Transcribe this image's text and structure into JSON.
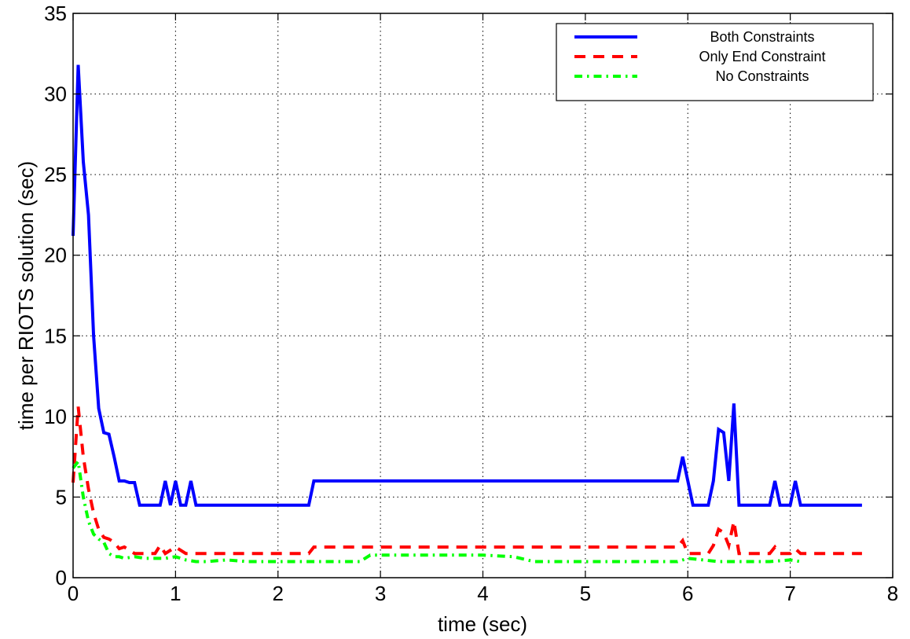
{
  "chart_data": {
    "type": "line",
    "title": "",
    "xlabel": "time (sec)",
    "ylabel": "time per RIOTS solution (sec)",
    "xlim": [
      0,
      8
    ],
    "ylim": [
      0,
      35
    ],
    "xticks": [
      "0",
      "1",
      "2",
      "3",
      "4",
      "5",
      "6",
      "7",
      "8"
    ],
    "yticks": [
      "0",
      "5",
      "10",
      "15",
      "20",
      "25",
      "30",
      "35"
    ],
    "grid": true,
    "legend_position": "top-right",
    "series": [
      {
        "name": "Both Constraints",
        "color": "#0000ff",
        "dash": "solid",
        "x": [
          0,
          0.05,
          0.1,
          0.15,
          0.2,
          0.25,
          0.3,
          0.35,
          0.4,
          0.45,
          0.5,
          0.55,
          0.6,
          0.65,
          0.7,
          0.75,
          0.8,
          0.85,
          0.9,
          0.95,
          1.0,
          1.05,
          1.1,
          1.15,
          1.2,
          1.4,
          1.6,
          1.8,
          2.0,
          2.2,
          2.3,
          2.35,
          2.4,
          3.0,
          3.2,
          3.4,
          4.0,
          4.8,
          5.0,
          5.5,
          5.9,
          5.95,
          6.0,
          6.05,
          6.1,
          6.2,
          6.25,
          6.3,
          6.35,
          6.4,
          6.45,
          6.5,
          6.6,
          6.7,
          6.8,
          6.85,
          6.9,
          7.0,
          7.05,
          7.1,
          7.2,
          7.5,
          7.7
        ],
        "values": [
          21.2,
          31.8,
          25.8,
          22.5,
          15,
          10.5,
          9,
          8.9,
          7.5,
          6,
          6,
          5.9,
          5.9,
          4.5,
          4.5,
          4.5,
          4.5,
          4.5,
          6,
          4.5,
          6,
          4.5,
          4.5,
          6,
          4.5,
          4.5,
          4.5,
          4.5,
          4.5,
          4.5,
          4.5,
          6,
          6,
          6,
          6,
          6,
          6,
          6,
          6,
          6,
          6,
          7.5,
          6,
          4.5,
          4.5,
          4.5,
          6,
          9.2,
          9,
          6,
          10.8,
          4.5,
          4.5,
          4.5,
          4.5,
          6,
          4.5,
          4.5,
          6,
          4.5,
          4.5,
          4.5,
          4.5
        ]
      },
      {
        "name": "Only End Constraint",
        "color": "#ff0000",
        "dash": "dashed",
        "x": [
          0,
          0.05,
          0.1,
          0.15,
          0.2,
          0.25,
          0.3,
          0.35,
          0.4,
          0.45,
          0.5,
          0.6,
          0.7,
          0.8,
          0.85,
          0.9,
          1.0,
          1.1,
          1.2,
          1.5,
          2.0,
          2.3,
          2.35,
          2.5,
          2.8,
          3.0,
          3.5,
          4.0,
          4.5,
          5.0,
          5.5,
          5.9,
          5.95,
          6.0,
          6.1,
          6.2,
          6.25,
          6.3,
          6.35,
          6.4,
          6.45,
          6.5,
          6.6,
          6.7,
          6.8,
          6.85,
          6.9,
          7.0,
          7.05,
          7.1,
          7.3,
          7.7
        ],
        "values": [
          5.9,
          10.6,
          7.5,
          5.5,
          4,
          3,
          2.5,
          2.4,
          2.2,
          1.8,
          1.9,
          1.5,
          1.5,
          1.5,
          2,
          1.5,
          1.9,
          1.5,
          1.5,
          1.5,
          1.5,
          1.5,
          1.9,
          1.9,
          1.9,
          1.9,
          1.9,
          1.9,
          1.9,
          1.9,
          1.9,
          1.9,
          2.3,
          1.5,
          1.5,
          1.5,
          2,
          3,
          2.8,
          2,
          3.5,
          1.5,
          1.5,
          1.5,
          1.5,
          1.9,
          1.5,
          1.5,
          1.8,
          1.5,
          1.5,
          1.5
        ]
      },
      {
        "name": "No Constraints",
        "color": "#00ff00",
        "dash": "dashdot",
        "x": [
          0,
          0.05,
          0.1,
          0.15,
          0.2,
          0.25,
          0.3,
          0.35,
          0.4,
          0.45,
          0.5,
          0.6,
          0.7,
          0.8,
          0.9,
          1.0,
          1.1,
          1.2,
          1.3,
          1.5,
          1.7,
          2.0,
          2.3,
          2.5,
          2.8,
          2.9,
          3.0,
          3.5,
          4.0,
          4.3,
          4.5,
          5.0,
          5.5,
          5.9,
          6.0,
          6.3,
          6.5,
          6.7,
          6.8,
          7.0,
          7.1
        ],
        "values": [
          6.8,
          7.2,
          5,
          3.5,
          2.7,
          2.4,
          2.2,
          1.5,
          1.3,
          1.3,
          1.2,
          1.3,
          1.2,
          1.2,
          1.2,
          1.3,
          1.1,
          1.0,
          1.0,
          1.1,
          1.0,
          1.0,
          1.0,
          1.0,
          1.0,
          1.4,
          1.4,
          1.4,
          1.4,
          1.3,
          1.0,
          1.0,
          1.0,
          1.0,
          1.2,
          1.0,
          1.0,
          1.0,
          1.0,
          1.1,
          1.0
        ]
      }
    ]
  }
}
